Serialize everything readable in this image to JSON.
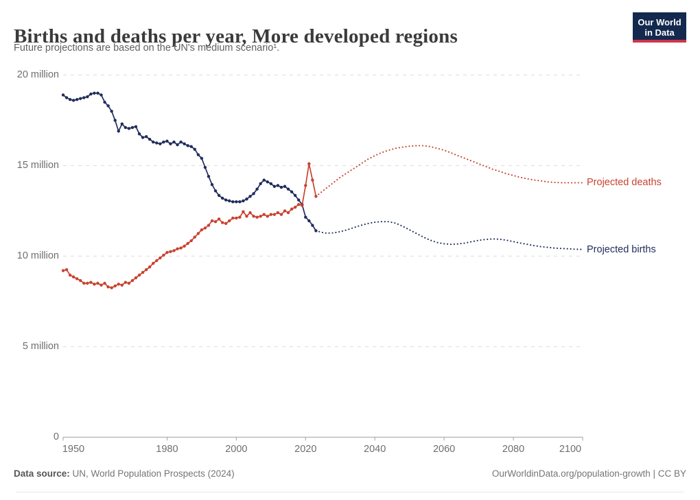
{
  "header": {
    "title": "Births and deaths per year, More developed regions",
    "subtitle": "Future projections are based on the UN's medium scenario¹.",
    "logo": {
      "line1": "Our World",
      "line2": "in Data"
    }
  },
  "footer": {
    "datasource_label": "Data source:",
    "datasource_value": " UN, World Population Prospects (2024)",
    "credit": "OurWorldinData.org/population-growth | CC BY"
  },
  "colors": {
    "births": "#202d5c",
    "deaths": "#c8432f",
    "grid": "#dcdcdc",
    "axis": "#a1a1a1",
    "tick_text": "#6e6e6e",
    "logo_bg": "#13294e",
    "logo_bar": "#d0344a"
  },
  "chart_data": {
    "type": "line",
    "title": "Births and deaths per year, More developed regions",
    "subtitle": "Future projections are based on the UN's medium scenario¹.",
    "xlabel": "",
    "ylabel": "",
    "unit": "million",
    "x_range": [
      1950,
      2100
    ],
    "y_range": [
      0,
      20
    ],
    "grid": "dashed-horizontal",
    "x_ticks": [
      1950,
      1980,
      2000,
      2020,
      2040,
      2060,
      2080,
      2100
    ],
    "y_ticks": [
      {
        "value": 0,
        "label": "0"
      },
      {
        "value": 5,
        "label": "5 million"
      },
      {
        "value": 10,
        "label": "10 million"
      },
      {
        "value": 15,
        "label": "15 million"
      },
      {
        "value": 20,
        "label": "20 million"
      }
    ],
    "series": [
      {
        "name": "Births (historical)",
        "color_key": "births",
        "style": "solid-markers",
        "start_year": 1950,
        "values": [
          18.9,
          18.75,
          18.65,
          18.6,
          18.65,
          18.7,
          18.75,
          18.8,
          18.95,
          19.0,
          19.0,
          18.9,
          18.5,
          18.3,
          18.0,
          17.5,
          16.9,
          17.3,
          17.1,
          17.05,
          17.1,
          17.15,
          16.75,
          16.55,
          16.6,
          16.45,
          16.3,
          16.25,
          16.2,
          16.3,
          16.35,
          16.2,
          16.3,
          16.15,
          16.3,
          16.2,
          16.1,
          16.05,
          15.9,
          15.6,
          15.4,
          14.9,
          14.4,
          13.95,
          13.6,
          13.35,
          13.2,
          13.1,
          13.05,
          13.0,
          13.0,
          13.0,
          13.05,
          13.15,
          13.3,
          13.45,
          13.7,
          14.0,
          14.2,
          14.1,
          14.0,
          13.85,
          13.9,
          13.8,
          13.85,
          13.7,
          13.55,
          13.35,
          13.1,
          12.85,
          12.15,
          11.95,
          11.7,
          11.4
        ]
      },
      {
        "name": "Births (projected)",
        "color_key": "births",
        "style": "dotted",
        "points": [
          [
            2023,
            11.4
          ],
          [
            2024,
            11.35
          ],
          [
            2025,
            11.3
          ],
          [
            2026,
            11.27
          ],
          [
            2028,
            11.28
          ],
          [
            2030,
            11.35
          ],
          [
            2032,
            11.45
          ],
          [
            2034,
            11.58
          ],
          [
            2036,
            11.7
          ],
          [
            2038,
            11.8
          ],
          [
            2040,
            11.87
          ],
          [
            2042,
            11.9
          ],
          [
            2044,
            11.9
          ],
          [
            2046,
            11.82
          ],
          [
            2048,
            11.65
          ],
          [
            2050,
            11.45
          ],
          [
            2052,
            11.25
          ],
          [
            2054,
            11.05
          ],
          [
            2056,
            10.88
          ],
          [
            2058,
            10.75
          ],
          [
            2060,
            10.68
          ],
          [
            2062,
            10.65
          ],
          [
            2064,
            10.67
          ],
          [
            2066,
            10.72
          ],
          [
            2068,
            10.8
          ],
          [
            2070,
            10.87
          ],
          [
            2072,
            10.92
          ],
          [
            2074,
            10.95
          ],
          [
            2076,
            10.93
          ],
          [
            2078,
            10.88
          ],
          [
            2080,
            10.8
          ],
          [
            2082,
            10.72
          ],
          [
            2084,
            10.65
          ],
          [
            2086,
            10.58
          ],
          [
            2088,
            10.52
          ],
          [
            2090,
            10.48
          ],
          [
            2092,
            10.44
          ],
          [
            2094,
            10.42
          ],
          [
            2096,
            10.4
          ],
          [
            2098,
            10.38
          ],
          [
            2100,
            10.37
          ]
        ]
      },
      {
        "name": "Deaths (historical)",
        "color_key": "deaths",
        "style": "solid-markers",
        "start_year": 1950,
        "values": [
          9.2,
          9.25,
          8.95,
          8.85,
          8.75,
          8.65,
          8.5,
          8.5,
          8.55,
          8.45,
          8.5,
          8.4,
          8.5,
          8.3,
          8.25,
          8.35,
          8.45,
          8.4,
          8.55,
          8.5,
          8.65,
          8.8,
          8.95,
          9.1,
          9.25,
          9.4,
          9.6,
          9.75,
          9.9,
          10.05,
          10.2,
          10.25,
          10.3,
          10.4,
          10.45,
          10.55,
          10.7,
          10.85,
          11.05,
          11.25,
          11.45,
          11.55,
          11.7,
          11.95,
          11.9,
          12.05,
          11.85,
          11.8,
          11.95,
          12.1,
          12.1,
          12.15,
          12.45,
          12.2,
          12.4,
          12.2,
          12.15,
          12.2,
          12.3,
          12.2,
          12.3,
          12.3,
          12.4,
          12.3,
          12.5,
          12.4,
          12.6,
          12.7,
          12.85,
          12.8,
          13.9,
          15.1,
          14.2,
          13.3
        ]
      },
      {
        "name": "Deaths (projected)",
        "color_key": "deaths",
        "style": "dotted",
        "points": [
          [
            2023,
            13.3
          ],
          [
            2024,
            13.45
          ],
          [
            2025,
            13.6
          ],
          [
            2026,
            13.75
          ],
          [
            2028,
            14.05
          ],
          [
            2030,
            14.35
          ],
          [
            2032,
            14.6
          ],
          [
            2034,
            14.85
          ],
          [
            2036,
            15.1
          ],
          [
            2038,
            15.35
          ],
          [
            2040,
            15.55
          ],
          [
            2042,
            15.72
          ],
          [
            2044,
            15.85
          ],
          [
            2046,
            15.95
          ],
          [
            2048,
            16.02
          ],
          [
            2050,
            16.07
          ],
          [
            2052,
            16.1
          ],
          [
            2054,
            16.1
          ],
          [
            2056,
            16.05
          ],
          [
            2058,
            15.95
          ],
          [
            2060,
            15.85
          ],
          [
            2062,
            15.7
          ],
          [
            2064,
            15.55
          ],
          [
            2066,
            15.4
          ],
          [
            2068,
            15.25
          ],
          [
            2070,
            15.1
          ],
          [
            2072,
            14.95
          ],
          [
            2074,
            14.8
          ],
          [
            2076,
            14.68
          ],
          [
            2078,
            14.55
          ],
          [
            2080,
            14.45
          ],
          [
            2082,
            14.35
          ],
          [
            2084,
            14.27
          ],
          [
            2086,
            14.2
          ],
          [
            2088,
            14.15
          ],
          [
            2090,
            14.1
          ],
          [
            2092,
            14.07
          ],
          [
            2094,
            14.05
          ],
          [
            2096,
            14.05
          ],
          [
            2098,
            14.05
          ],
          [
            2100,
            14.05
          ]
        ]
      }
    ],
    "legend_position": "end-of-line-labels",
    "annotations": [
      {
        "text": "Projected deaths",
        "color_key": "deaths",
        "attach_series": 3
      },
      {
        "text": "Projected births",
        "color_key": "births",
        "attach_series": 1
      }
    ]
  }
}
